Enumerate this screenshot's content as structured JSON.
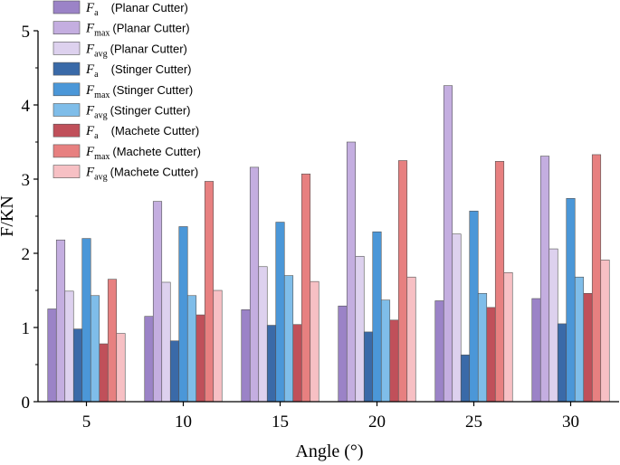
{
  "chart_data": {
    "type": "bar",
    "xlabel": "Angle (°)",
    "ylabel": "F/KN",
    "ylim": [
      0,
      5
    ],
    "yticks": [
      "0",
      "1",
      "2",
      "3",
      "4",
      "5"
    ],
    "categories": [
      "5",
      "10",
      "15",
      "20",
      "25",
      "30"
    ],
    "legend_position": "top-left",
    "series": [
      {
        "name": "Fa (Planar Cutter)",
        "symbol": "F",
        "sub": "a",
        "cutter": "(Planar Cutter)",
        "color": "#9b83c7",
        "values": [
          1.25,
          1.15,
          1.24,
          1.29,
          1.36,
          1.39
        ]
      },
      {
        "name": "Fmax (Planar Cutter)",
        "symbol": "F",
        "sub": "max",
        "cutter": "(Planar Cutter)",
        "color": "#c4aee0",
        "values": [
          2.18,
          2.7,
          3.16,
          3.5,
          4.26,
          3.31
        ]
      },
      {
        "name": "Favg (Planar Cutter)",
        "symbol": "F",
        "sub": "avg",
        "cutter": "(Planar Cutter)",
        "color": "#ddd1ee",
        "values": [
          1.49,
          1.61,
          1.82,
          1.96,
          2.26,
          2.06
        ]
      },
      {
        "name": "Fa (Stinger Cutter)",
        "symbol": "F",
        "sub": "a",
        "cutter": "(Stinger Cutter)",
        "color": "#3a6aa8",
        "values": [
          0.98,
          0.82,
          1.03,
          0.94,
          0.63,
          1.05
        ]
      },
      {
        "name": "Fmax (Stinger Cutter)",
        "symbol": "F",
        "sub": "max",
        "cutter": "(Stinger Cutter)",
        "color": "#4b97d8",
        "values": [
          2.2,
          2.36,
          2.42,
          2.29,
          2.57,
          2.74
        ]
      },
      {
        "name": "Favg (Stinger Cutter)",
        "symbol": "F",
        "sub": "avg",
        "cutter": "(Stinger Cutter)",
        "color": "#7fbde9",
        "values": [
          1.43,
          1.43,
          1.7,
          1.37,
          1.46,
          1.68
        ]
      },
      {
        "name": "Fa (Machete Cutter)",
        "symbol": "F",
        "sub": "a",
        "cutter": "(Machete Cutter)",
        "color": "#c0505a",
        "values": [
          0.78,
          1.17,
          1.04,
          1.1,
          1.27,
          1.46
        ]
      },
      {
        "name": "Fmax (Machete Cutter)",
        "symbol": "F",
        "sub": "max",
        "cutter": "(Machete Cutter)",
        "color": "#e78080",
        "values": [
          1.65,
          2.97,
          3.07,
          3.25,
          3.24,
          3.33
        ]
      },
      {
        "name": "Favg (Machete Cutter)",
        "symbol": "F",
        "sub": "avg",
        "cutter": "(Machete Cutter)",
        "color": "#f7c0c4",
        "values": [
          0.92,
          1.5,
          1.62,
          1.68,
          1.74,
          1.91
        ]
      }
    ]
  }
}
